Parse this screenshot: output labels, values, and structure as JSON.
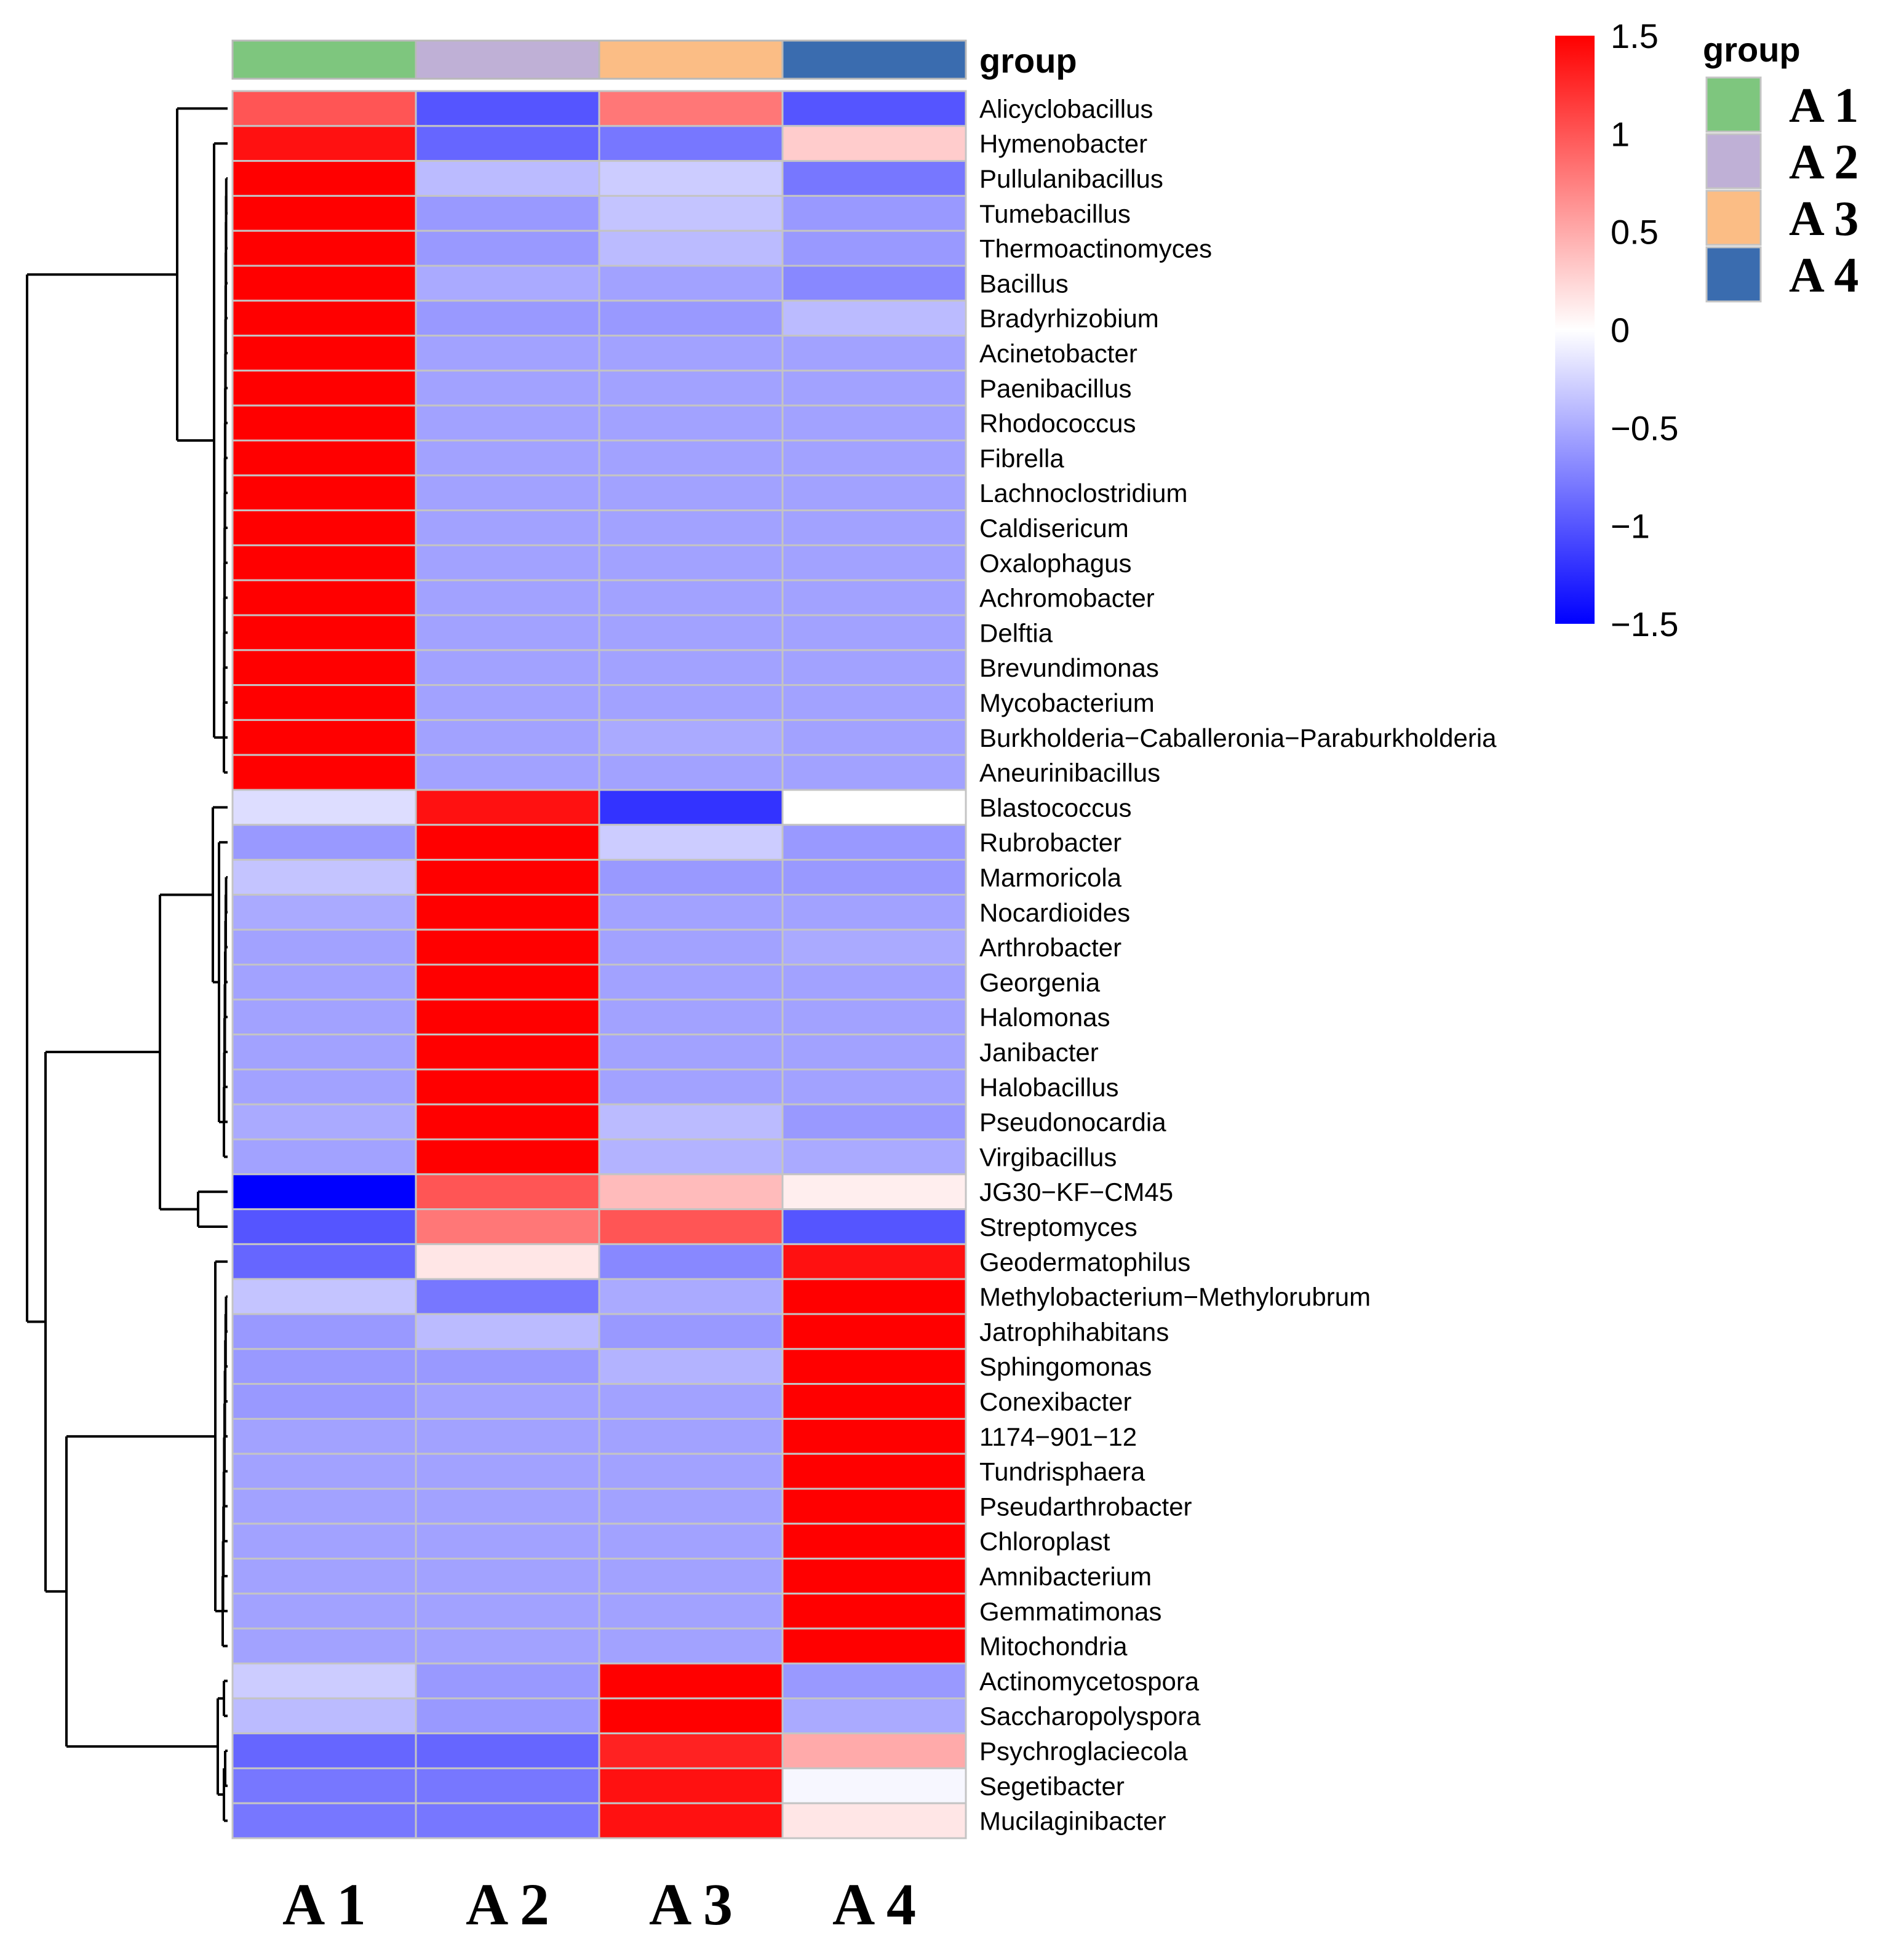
{
  "chart_data": {
    "type": "heatmap",
    "columns": [
      "A 1",
      "A 2",
      "A 3",
      "A 4"
    ],
    "column_colors": [
      "#7ec67e",
      "#bfb0d6",
      "#fbbd85",
      "#3a6caf"
    ],
    "group_annotation_title": "group",
    "legend_title": "group",
    "legend_entries": [
      "A 1",
      "A 2",
      "A 3",
      "A 4"
    ],
    "color_scale": {
      "min": -1.5,
      "max": 1.5,
      "low_color": "#0000ff",
      "mid_color": "#ffffff",
      "high_color": "#ff0000",
      "ticks": [
        1.5,
        1,
        0.5,
        0,
        -0.5,
        -1,
        -1.5
      ],
      "tick_labels": [
        "1.5",
        "1",
        "0.5",
        "0",
        "−0.5",
        "−1",
        "−1.5"
      ]
    },
    "rows": [
      {
        "label": "Alicyclobacillus",
        "values": [
          1.0,
          -1.0,
          0.8,
          -1.0
        ]
      },
      {
        "label": "Hymenobacter",
        "values": [
          1.4,
          -0.9,
          -0.8,
          0.3
        ]
      },
      {
        "label": "Pullulanibacillus",
        "values": [
          1.5,
          -0.4,
          -0.3,
          -0.8
        ]
      },
      {
        "label": "Tumebacillus",
        "values": [
          1.5,
          -0.6,
          -0.35,
          -0.6
        ]
      },
      {
        "label": "Thermoactinomyces",
        "values": [
          1.5,
          -0.6,
          -0.4,
          -0.6
        ]
      },
      {
        "label": "Bacillus",
        "values": [
          1.5,
          -0.5,
          -0.55,
          -0.7
        ]
      },
      {
        "label": "Bradyrhizobium",
        "values": [
          1.5,
          -0.6,
          -0.6,
          -0.4
        ]
      },
      {
        "label": "Acinetobacter",
        "values": [
          1.5,
          -0.55,
          -0.55,
          -0.55
        ]
      },
      {
        "label": "Paenibacillus",
        "values": [
          1.5,
          -0.55,
          -0.55,
          -0.55
        ]
      },
      {
        "label": "Rhodococcus",
        "values": [
          1.5,
          -0.55,
          -0.55,
          -0.55
        ]
      },
      {
        "label": "Fibrella",
        "values": [
          1.5,
          -0.55,
          -0.55,
          -0.55
        ]
      },
      {
        "label": "Lachnoclostridium",
        "values": [
          1.5,
          -0.55,
          -0.55,
          -0.55
        ]
      },
      {
        "label": "Caldisericum",
        "values": [
          1.5,
          -0.55,
          -0.55,
          -0.55
        ]
      },
      {
        "label": "Oxalophagus",
        "values": [
          1.5,
          -0.55,
          -0.55,
          -0.55
        ]
      },
      {
        "label": "Achromobacter",
        "values": [
          1.5,
          -0.55,
          -0.55,
          -0.55
        ]
      },
      {
        "label": "Delftia",
        "values": [
          1.5,
          -0.55,
          -0.55,
          -0.55
        ]
      },
      {
        "label": "Brevundimonas",
        "values": [
          1.5,
          -0.55,
          -0.55,
          -0.55
        ]
      },
      {
        "label": "Mycobacterium",
        "values": [
          1.5,
          -0.55,
          -0.55,
          -0.55
        ]
      },
      {
        "label": "Burkholderia−Caballeronia−Paraburkholderia",
        "values": [
          1.5,
          -0.55,
          -0.5,
          -0.55
        ]
      },
      {
        "label": "Aneurinibacillus",
        "values": [
          1.5,
          -0.55,
          -0.55,
          -0.55
        ]
      },
      {
        "label": "Blastococcus",
        "values": [
          -0.2,
          1.4,
          -1.2,
          0.0
        ]
      },
      {
        "label": "Rubrobacter",
        "values": [
          -0.6,
          1.5,
          -0.3,
          -0.6
        ]
      },
      {
        "label": "Marmoricola",
        "values": [
          -0.35,
          1.5,
          -0.6,
          -0.6
        ]
      },
      {
        "label": "Nocardioides",
        "values": [
          -0.5,
          1.5,
          -0.55,
          -0.55
        ]
      },
      {
        "label": "Arthrobacter",
        "values": [
          -0.55,
          1.5,
          -0.55,
          -0.5
        ]
      },
      {
        "label": "Georgenia",
        "values": [
          -0.55,
          1.5,
          -0.55,
          -0.55
        ]
      },
      {
        "label": "Halomonas",
        "values": [
          -0.55,
          1.5,
          -0.55,
          -0.55
        ]
      },
      {
        "label": "Janibacter",
        "values": [
          -0.55,
          1.5,
          -0.55,
          -0.55
        ]
      },
      {
        "label": "Halobacillus",
        "values": [
          -0.55,
          1.5,
          -0.55,
          -0.55
        ]
      },
      {
        "label": "Pseudonocardia",
        "values": [
          -0.5,
          1.5,
          -0.4,
          -0.6
        ]
      },
      {
        "label": "Virgibacillus",
        "values": [
          -0.55,
          1.5,
          -0.45,
          -0.5
        ]
      },
      {
        "label": "JG30−KF−CM45",
        "values": [
          -1.5,
          1.0,
          0.4,
          0.1
        ]
      },
      {
        "label": "Streptomyces",
        "values": [
          -1.0,
          0.8,
          1.0,
          -1.0
        ]
      },
      {
        "label": "Geodermatophilus",
        "values": [
          -0.9,
          0.15,
          -0.7,
          1.4
        ]
      },
      {
        "label": "Methylobacterium−Methylorubrum",
        "values": [
          -0.35,
          -0.8,
          -0.5,
          1.5
        ]
      },
      {
        "label": "Jatrophihabitans",
        "values": [
          -0.6,
          -0.4,
          -0.6,
          1.5
        ]
      },
      {
        "label": "Sphingomonas",
        "values": [
          -0.6,
          -0.6,
          -0.45,
          1.5
        ]
      },
      {
        "label": "Conexibacter",
        "values": [
          -0.6,
          -0.55,
          -0.55,
          1.5
        ]
      },
      {
        "label": "1174−901−12",
        "values": [
          -0.55,
          -0.55,
          -0.55,
          1.5
        ]
      },
      {
        "label": "Tundrisphaera",
        "values": [
          -0.55,
          -0.55,
          -0.55,
          1.5
        ]
      },
      {
        "label": "Pseudarthrobacter",
        "values": [
          -0.55,
          -0.55,
          -0.55,
          1.5
        ]
      },
      {
        "label": "Chloroplast",
        "values": [
          -0.55,
          -0.55,
          -0.55,
          1.5
        ]
      },
      {
        "label": "Amnibacterium",
        "values": [
          -0.55,
          -0.55,
          -0.55,
          1.5
        ]
      },
      {
        "label": "Gemmatimonas",
        "values": [
          -0.55,
          -0.55,
          -0.55,
          1.5
        ]
      },
      {
        "label": "Mitochondria",
        "values": [
          -0.55,
          -0.55,
          -0.55,
          1.5
        ]
      },
      {
        "label": "Actinomycetospora",
        "values": [
          -0.3,
          -0.6,
          1.5,
          -0.6
        ]
      },
      {
        "label": "Saccharopolyspora",
        "values": [
          -0.4,
          -0.6,
          1.5,
          -0.5
        ]
      },
      {
        "label": "Psychroglaciecola",
        "values": [
          -0.9,
          -0.9,
          1.3,
          0.5
        ]
      },
      {
        "label": "Segetibacter",
        "values": [
          -0.8,
          -0.8,
          1.4,
          -0.05
        ]
      },
      {
        "label": "Mucilaginibacter",
        "values": [
          -0.8,
          -0.8,
          1.4,
          0.15
        ]
      }
    ]
  }
}
